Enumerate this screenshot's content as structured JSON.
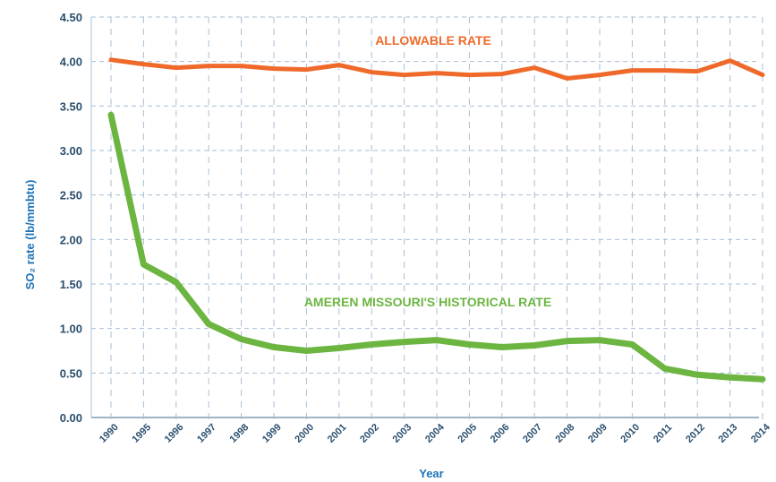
{
  "chart_data": {
    "type": "line",
    "title": "",
    "xlabel": "Year",
    "ylabel": "SO₂ rate (lb/mmbtu)",
    "ylim": [
      0,
      4.5
    ],
    "y_ticks": [
      "0.00",
      "0.50",
      "1.00",
      "1.50",
      "2.00",
      "2.50",
      "3.00",
      "3.50",
      "4.00",
      "4.50"
    ],
    "categories": [
      "1990",
      "1995",
      "1996",
      "1997",
      "1998",
      "1999",
      "2000",
      "2001",
      "2002",
      "2003",
      "2004",
      "2005",
      "2006",
      "2007",
      "2008",
      "2009",
      "2010",
      "2011",
      "2012",
      "2013",
      "2014"
    ],
    "grid": "dashed vertical and horizontal",
    "legend": "none (series labeled inline)",
    "series": [
      {
        "name": "ALLOWABLE RATE",
        "color": "#ef6a2a",
        "values": [
          4.02,
          3.97,
          3.93,
          3.95,
          3.95,
          3.92,
          3.91,
          3.96,
          3.88,
          3.85,
          3.87,
          3.85,
          3.86,
          3.93,
          3.81,
          3.85,
          3.9,
          3.9,
          3.89,
          4.01,
          3.85
        ]
      },
      {
        "name": "AMEREN MISSOURI'S HISTORICAL RATE",
        "color": "#6cb541",
        "values": [
          3.4,
          1.72,
          1.52,
          1.05,
          0.88,
          0.79,
          0.75,
          0.78,
          0.82,
          0.85,
          0.87,
          0.82,
          0.79,
          0.81,
          0.86,
          0.87,
          0.82,
          0.55,
          0.48,
          0.45,
          0.43
        ]
      }
    ]
  }
}
